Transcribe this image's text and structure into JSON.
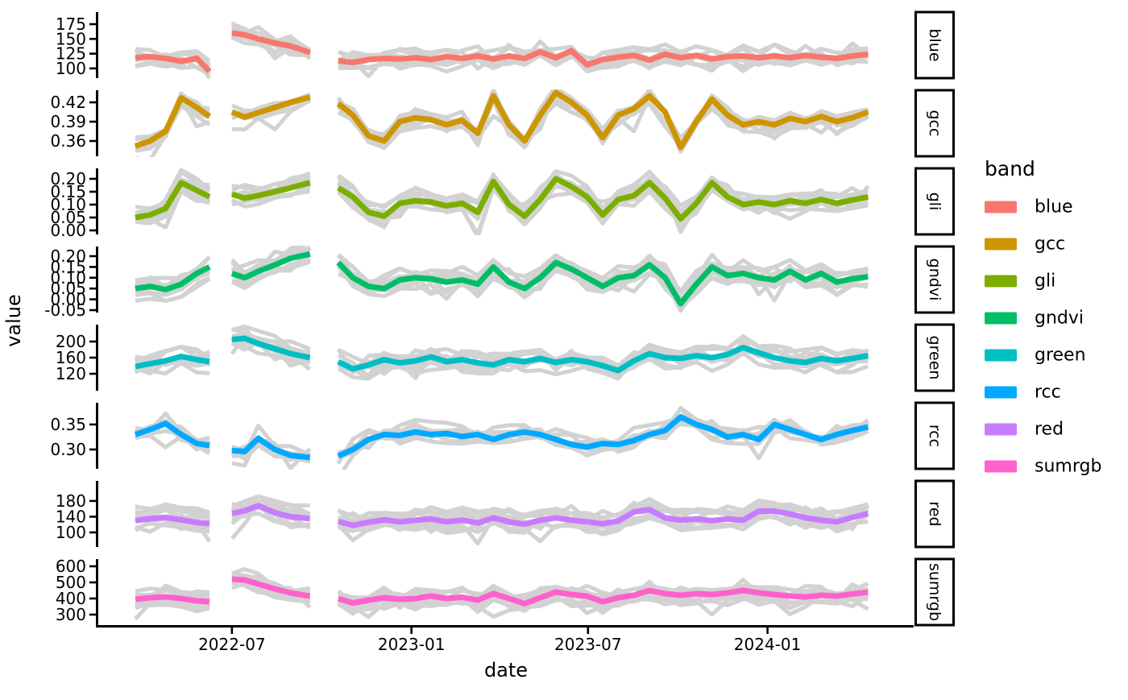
{
  "figure": {
    "ylabel": "value",
    "xlabel": "date",
    "background": "#FFFFFF",
    "axis_color": "#000000",
    "gray_series_color": "#D2D2D2"
  },
  "chart_data": {
    "type": "line",
    "facet_by": "band",
    "x_field": "date",
    "x_dates": [
      "2022-03-24",
      "2022-04-08",
      "2022-04-24",
      "2022-05-10",
      "2022-05-26",
      "2022-06-08",
      "2022-07-01",
      "2022-07-14",
      "2022-07-28",
      "2022-08-14",
      "2022-08-30",
      "2022-09-19",
      "2022-10-18",
      "2022-11-02",
      "2022-11-18",
      "2022-12-04",
      "2022-12-20",
      "2023-01-05",
      "2023-01-21",
      "2023-02-06",
      "2023-02-22",
      "2023-03-10",
      "2023-03-26",
      "2023-04-11",
      "2023-04-27",
      "2023-05-13",
      "2023-05-29",
      "2023-06-14",
      "2023-06-30",
      "2023-07-16",
      "2023-08-01",
      "2023-08-17",
      "2023-09-02",
      "2023-09-18",
      "2023-10-04",
      "2023-10-20",
      "2023-11-05",
      "2023-11-21",
      "2023-12-07",
      "2023-12-23",
      "2024-01-08",
      "2024-01-24",
      "2024-02-09",
      "2024-02-25",
      "2024-03-12",
      "2024-03-28",
      "2024-04-13"
    ],
    "segment_break_after": [
      5,
      11
    ],
    "x_axis": {
      "range": [
        "2022-02-14",
        "2024-05-29"
      ],
      "tick_dates": [
        "2022-07-01",
        "2023-01-01",
        "2023-07-01",
        "2024-01-01"
      ],
      "tick_labels": [
        "2022-07",
        "2023-01",
        "2023-07",
        "2024-01"
      ]
    },
    "legend": {
      "title": "band",
      "position": "right",
      "entries": [
        {
          "label": "blue",
          "color": "#F8766D"
        },
        {
          "label": "gcc",
          "color": "#CD9600"
        },
        {
          "label": "gli",
          "color": "#7CAE00"
        },
        {
          "label": "gndvi",
          "color": "#00BE67"
        },
        {
          "label": "green",
          "color": "#00BFC4"
        },
        {
          "label": "rcc",
          "color": "#00A9FF"
        },
        {
          "label": "red",
          "color": "#C77CFF"
        },
        {
          "label": "sumrgb",
          "color": "#FF61CC"
        }
      ]
    },
    "background_series_per_facet": 9,
    "facets": [
      {
        "band": "blue",
        "color": "#F8766D",
        "ylim": [
          83.5,
          195.5
        ],
        "yticks": [
          100,
          125,
          150,
          175
        ],
        "values": [
          118,
          120,
          117,
          112,
          117,
          95,
          160,
          157,
          150,
          143,
          138,
          127,
          113,
          110,
          115,
          117,
          116,
          118,
          115,
          120,
          117,
          121,
          116,
          121,
          117,
          128,
          118,
          130,
          106,
          115,
          119,
          122,
          114,
          124,
          118,
          122,
          116,
          120,
          121,
          118,
          121,
          118,
          122,
          119,
          117,
          121,
          124
        ]
      },
      {
        "band": "gcc",
        "color": "#CD9600",
        "ylim": [
          0.3363,
          0.4388
        ],
        "yticks": [
          0.36,
          0.39,
          0.42
        ],
        "values": [
          0.352,
          0.36,
          0.375,
          0.427,
          0.412,
          0.398,
          0.405,
          0.397,
          0.404,
          0.412,
          0.42,
          0.428,
          0.418,
          0.4,
          0.368,
          0.36,
          0.39,
          0.396,
          0.393,
          0.385,
          0.392,
          0.372,
          0.43,
          0.385,
          0.36,
          0.4,
          0.435,
          0.42,
          0.4,
          0.365,
          0.4,
          0.41,
          0.43,
          0.405,
          0.35,
          0.39,
          0.425,
          0.4,
          0.385,
          0.39,
          0.385,
          0.395,
          0.39,
          0.398,
          0.39,
          0.396,
          0.405
        ]
      },
      {
        "band": "gli",
        "color": "#7CAE00",
        "ylim": [
          -0.0156,
          0.2406
        ],
        "yticks": [
          0.0,
          0.05,
          0.1,
          0.15,
          0.2
        ],
        "values": [
          0.05,
          0.06,
          0.085,
          0.185,
          0.155,
          0.13,
          0.14,
          0.125,
          0.135,
          0.15,
          0.165,
          0.185,
          0.165,
          0.13,
          0.07,
          0.055,
          0.105,
          0.115,
          0.11,
          0.095,
          0.105,
          0.07,
          0.19,
          0.1,
          0.055,
          0.12,
          0.2,
          0.17,
          0.13,
          0.06,
          0.12,
          0.135,
          0.185,
          0.125,
          0.045,
          0.105,
          0.185,
          0.13,
          0.1,
          0.11,
          0.1,
          0.115,
          0.105,
          0.12,
          0.105,
          0.118,
          0.13
        ]
      },
      {
        "band": "gndvi",
        "color": "#00BE67",
        "ylim": [
          -0.0612,
          0.2448
        ],
        "yticks": [
          -0.05,
          0.0,
          0.05,
          0.1,
          0.15,
          0.2
        ],
        "values": [
          0.05,
          0.06,
          0.045,
          0.07,
          0.12,
          0.15,
          0.12,
          0.1,
          0.13,
          0.16,
          0.19,
          0.21,
          0.17,
          0.1,
          0.06,
          0.05,
          0.09,
          0.1,
          0.095,
          0.08,
          0.09,
          0.07,
          0.15,
          0.08,
          0.05,
          0.1,
          0.17,
          0.14,
          0.1,
          0.06,
          0.1,
          0.11,
          0.16,
          0.1,
          -0.02,
          0.07,
          0.15,
          0.11,
          0.12,
          0.1,
          0.09,
          0.13,
          0.09,
          0.12,
          0.08,
          0.095,
          0.105
        ]
      },
      {
        "band": "green",
        "color": "#00BFC4",
        "ylim": [
          78,
          242
        ],
        "yticks": [
          120,
          160,
          200
        ],
        "values": [
          138,
          145,
          152,
          163,
          155,
          150,
          205,
          208,
          195,
          182,
          170,
          160,
          150,
          132,
          142,
          155,
          147,
          152,
          162,
          150,
          155,
          147,
          142,
          155,
          150,
          158,
          148,
          155,
          150,
          140,
          128,
          152,
          170,
          160,
          158,
          165,
          160,
          168,
          185,
          172,
          160,
          152,
          148,
          158,
          152,
          158,
          165
        ]
      },
      {
        "band": "rcc",
        "color": "#00A9FF",
        "ylim": [
          0.2613,
          0.3935
        ],
        "yticks": [
          0.3,
          0.35
        ],
        "values": [
          0.33,
          0.34,
          0.352,
          0.33,
          0.312,
          0.308,
          0.298,
          0.296,
          0.322,
          0.3,
          0.288,
          0.284,
          0.287,
          0.3,
          0.32,
          0.33,
          0.328,
          0.335,
          0.33,
          0.332,
          0.326,
          0.33,
          0.32,
          0.33,
          0.335,
          0.33,
          0.32,
          0.31,
          0.305,
          0.312,
          0.31,
          0.318,
          0.33,
          0.338,
          0.365,
          0.35,
          0.34,
          0.325,
          0.33,
          0.32,
          0.35,
          0.34,
          0.33,
          0.32,
          0.33,
          0.338,
          0.345
        ]
      },
      {
        "band": "red",
        "color": "#C77CFF",
        "ylim": [
          63,
          231
        ],
        "yticks": [
          100,
          140,
          180
        ],
        "values": [
          130,
          135,
          138,
          132,
          125,
          122,
          148,
          155,
          168,
          150,
          140,
          135,
          128,
          118,
          126,
          132,
          127,
          131,
          134,
          127,
          131,
          124,
          137,
          127,
          121,
          131,
          137,
          131,
          127,
          122,
          129,
          152,
          158,
          137,
          131,
          134,
          130,
          134,
          131,
          154,
          154,
          147,
          137,
          131,
          127,
          138,
          148
        ]
      },
      {
        "band": "sumrgb",
        "color": "#FF61CC",
        "ylim": [
          235,
          645
        ],
        "yticks": [
          300,
          400,
          500,
          600
        ],
        "values": [
          395,
          405,
          410,
          400,
          385,
          380,
          520,
          515,
          490,
          460,
          435,
          415,
          400,
          372,
          390,
          405,
          395,
          400,
          415,
          400,
          408,
          390,
          430,
          400,
          368,
          405,
          440,
          425,
          415,
          380,
          405,
          420,
          450,
          430,
          420,
          430,
          425,
          435,
          450,
          435,
          425,
          415,
          410,
          420,
          415,
          428,
          440
        ]
      }
    ]
  }
}
